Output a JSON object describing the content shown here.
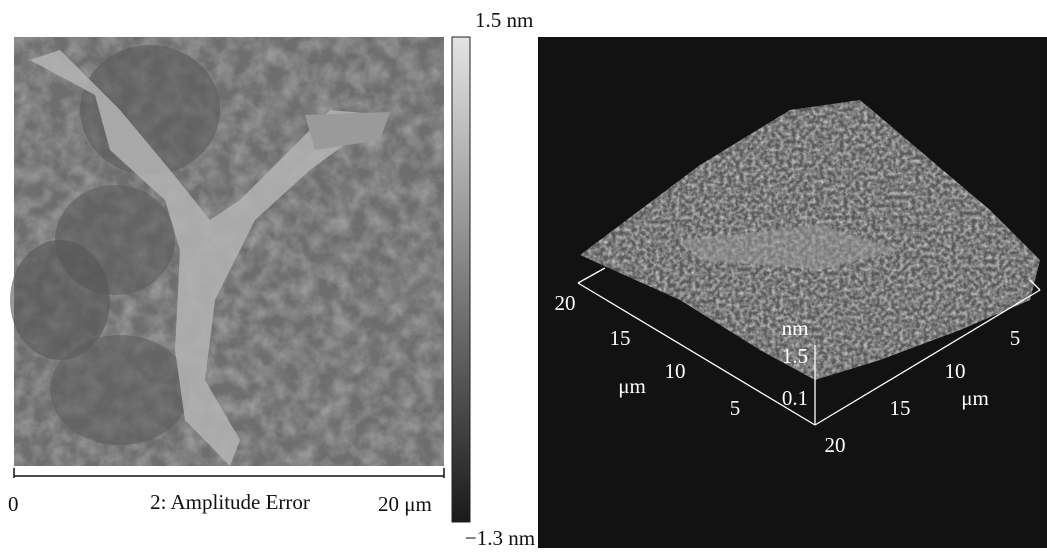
{
  "left_panel": {
    "colorbar": {
      "max_label": "1.5 nm",
      "min_label": "−1.3 nm"
    },
    "scale_bar": {
      "start": "0",
      "label": "2: Amplitude Error",
      "end": "20 μm"
    }
  },
  "right_panel": {
    "y_axis": {
      "ticks": [
        "20",
        "15",
        "10",
        "5"
      ],
      "unit": "μm"
    },
    "x_axis": {
      "ticks": [
        "5",
        "10",
        "15",
        "20"
      ],
      "unit": "μm"
    },
    "z_axis": {
      "unit": "nm",
      "ticks": [
        "1.5",
        "0.1"
      ]
    }
  }
}
